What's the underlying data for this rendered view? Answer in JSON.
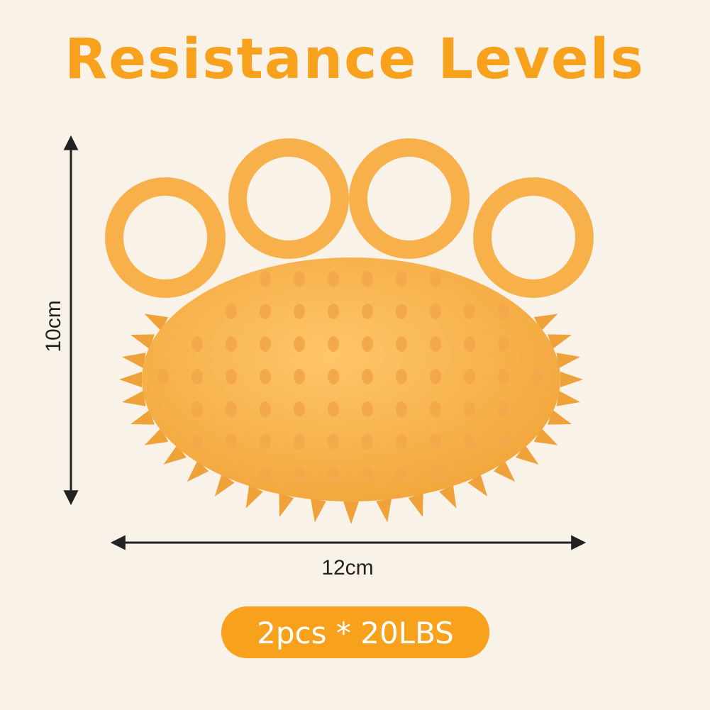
{
  "title": "Resistance Levels",
  "height_label": "10cm",
  "width_label": "12cm",
  "badge": "2pcs * 20LBS"
}
